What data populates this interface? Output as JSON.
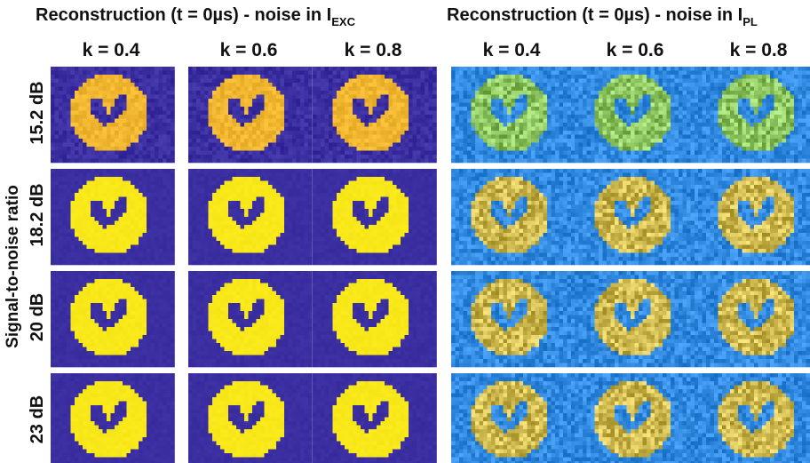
{
  "panels": [
    {
      "title": "Reconstruction (t = 0µs) - noise in I",
      "subscript": "EXC",
      "columns": [
        "k = 0.4",
        "k = 0.6",
        "k = 0.8"
      ]
    },
    {
      "title": "Reconstruction (t = 0µs) - noise in I",
      "subscript": "PL",
      "columns": [
        "k = 0.4",
        "k = 0.6",
        "k = 0.8"
      ]
    }
  ],
  "rows": [
    "15.2 dB",
    "18.2 dB",
    "20 dB",
    "23 dB"
  ],
  "y_label": "Signal-to-noise ratio"
}
